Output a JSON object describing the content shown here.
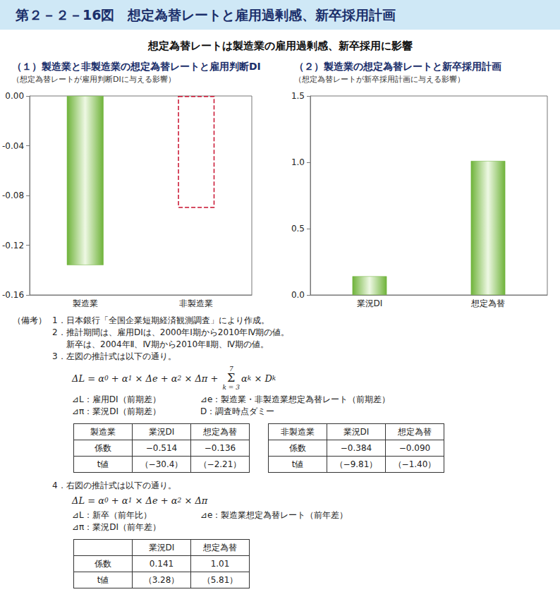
{
  "header": {
    "title": "第２－２－16図　想定為替レートと雇用過剰感、新卒採用計画",
    "subtitle": "想定為替レートは製造業の雇用過剰感、新卒採用に影響"
  },
  "chart_data": [
    {
      "type": "bar",
      "title": "（１）製造業と非製造業の想定為替レートと雇用判断DI",
      "subtitle": "（想定為替レートが雇用判断DIに与える影響）",
      "categories": [
        "製造業",
        "非製造業"
      ],
      "series": [
        {
          "values": [
            -0.136,
            null
          ],
          "color": "#6fb33a",
          "line_style": "solid"
        },
        {
          "values": [
            null,
            -0.09
          ],
          "color": "#c8102e",
          "line_style": "dashed"
        }
      ],
      "ylim": [
        -0.16,
        0
      ],
      "yticks": [
        -0.16,
        -0.12,
        -0.08,
        -0.04,
        {
          "value": 0,
          "label": "0.00"
        }
      ],
      "grid": false
    },
    {
      "type": "bar",
      "title": "（２）製造業の想定為替レートと新卒採用計画",
      "subtitle": "（想定為替レートが新卒採用計画に与える影響）",
      "categories": [
        "業況DI",
        "想定為替"
      ],
      "values": [
        0.141,
        1.01
      ],
      "color": "#6fb33a",
      "ylim": [
        0,
        1.5
      ],
      "yticks": [
        {
          "value": 0,
          "label": "0.0"
        },
        0.5,
        {
          "value": 1,
          "label": "1.0"
        },
        1.5
      ],
      "grid": false
    }
  ],
  "notes": {
    "label": "（備考）",
    "items": [
      {
        "num": "1．",
        "lines": [
          "日本銀行「全国企業短期経済観測調査」により作成。"
        ]
      },
      {
        "num": "2．",
        "lines": [
          "推計期間は、雇用DIは、2000年Ⅰ期から2010年Ⅳ期の値。",
          "新卒は、2004年Ⅱ、Ⅳ期から2010年Ⅱ期、Ⅳ期の値。"
        ]
      },
      {
        "num": "3．",
        "lines": [
          "左図の推計式は以下の通り。"
        ],
        "formula": [
          {
            "text": "ΔL = α"
          },
          {
            "sub": "0"
          },
          {
            "text": " + α"
          },
          {
            "sub": "1"
          },
          {
            "text": " × Δe + α"
          },
          {
            "sub": "2"
          },
          {
            "text": " × Δπ + "
          },
          {
            "sum": "Σ",
            "over": "7",
            "under": "k = 3"
          },
          {
            "text": "α"
          },
          {
            "sub": "k"
          },
          {
            "text": " × D"
          },
          {
            "sub": "k"
          }
        ],
        "definitions": [
          [
            "⊿L：雇用DI（前期差）",
            "⊿e：製造業・非製造業想定為替レート（前期差）"
          ],
          [
            "⊿π：業況DI（前期差）",
            "D：調査時点ダミー"
          ]
        ],
        "tables": [
          {
            "rows": [
              [
                "製造業",
                "業況DI",
                "想定為替"
              ],
              [
                "係数",
                "−0.514",
                "−0.136"
              ],
              [
                "t値",
                "（−30.4）",
                "（−2.21）"
              ]
            ]
          },
          {
            "rows": [
              [
                "非製造業",
                "業況DI",
                "想定為替"
              ],
              [
                "係数",
                "−0.384",
                "−0.090"
              ],
              [
                "t値",
                "（−9.81）",
                "（−1.40）"
              ]
            ]
          }
        ]
      },
      {
        "num": "4．",
        "lines": [
          "右図の推計式は以下の通り。"
        ],
        "formula": [
          {
            "text": "ΔL = α"
          },
          {
            "sub": "0"
          },
          {
            "text": " + α"
          },
          {
            "sub": "1"
          },
          {
            "text": " × Δe + α"
          },
          {
            "sub": "2"
          },
          {
            "text": " × Δπ"
          }
        ],
        "definitions": [
          [
            "⊿L：新卒（前年比）",
            "⊿e：製造業想定為替レート（前年差）"
          ],
          [
            "⊿π：業況DI（前年差）"
          ]
        ],
        "tables": [
          {
            "rows": [
              [
                null,
                "業況DI",
                "想定為替"
              ],
              [
                "係数",
                "0.141",
                "1.01"
              ],
              [
                "t値",
                "（3.28）",
                "（5.81）"
              ]
            ]
          }
        ]
      }
    ]
  }
}
